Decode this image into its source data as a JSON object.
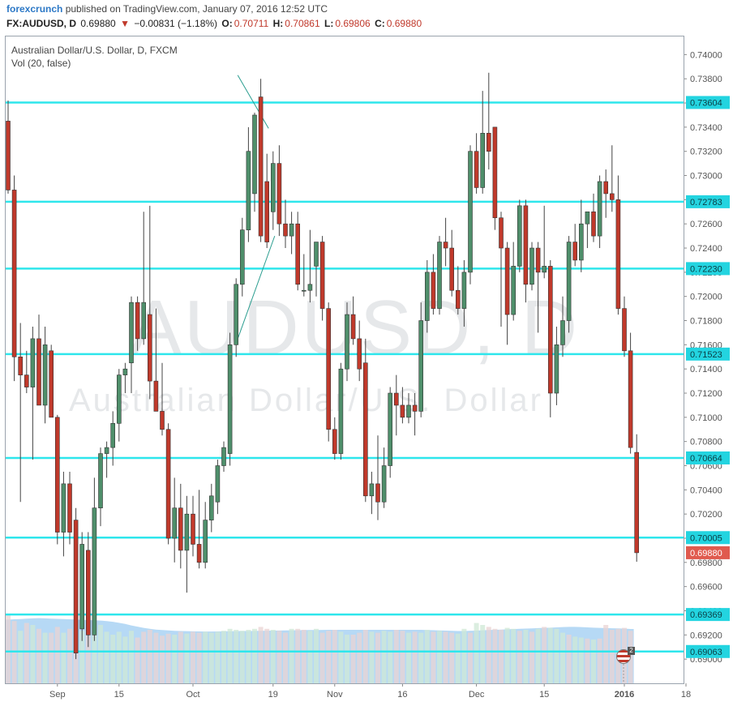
{
  "header": {
    "brand": "forexcrunch",
    "published_text": "published on TradingView.com, January 07, 2016 12:52 UTC",
    "symbol": "FX:AUDUSD, D",
    "last_price": "0.69880",
    "change_arrow": "▼",
    "change": "−0.00831 (−1.18%)",
    "open_label": "O:",
    "open": "0.70711",
    "high_label": "H:",
    "high": "0.70861",
    "low_label": "L:",
    "low": "0.69806",
    "close_label": "C:",
    "close": "0.69880"
  },
  "chart_data": {
    "type": "candlestick",
    "title": "Australian Dollar/U.S. Dollar, D, FXCM",
    "volume_label": "Vol (20, false)",
    "watermark_symbol": "AUDUSD, D",
    "watermark_name": "Australian Dollar/U.S. Dollar",
    "ylim": [
      0.688,
      0.7415
    ],
    "y_ticks": [
      "0.74000",
      "0.73800",
      "0.73600",
      "0.73400",
      "0.73200",
      "0.73000",
      "0.72800",
      "0.72600",
      "0.72400",
      "0.72200",
      "0.72000",
      "0.71800",
      "0.71600",
      "0.71400",
      "0.71200",
      "0.71000",
      "0.70800",
      "0.70600",
      "0.70400",
      "0.70200",
      "0.70000",
      "0.69800",
      "0.69600",
      "0.69400",
      "0.69200",
      "0.69000"
    ],
    "x_ticks": [
      {
        "label": "Sep",
        "index": 8
      },
      {
        "label": "15",
        "index": 18
      },
      {
        "label": "Oct",
        "index": 30
      },
      {
        "label": "19",
        "index": 43
      },
      {
        "label": "Nov",
        "index": 53
      },
      {
        "label": "16",
        "index": 64
      },
      {
        "label": "Dec",
        "index": 76
      },
      {
        "label": "15",
        "index": 87
      },
      {
        "label": "2016",
        "index": 100
      },
      {
        "label": "18",
        "index": 110
      }
    ],
    "support_resistance_levels": [
      "0.73604",
      "0.72783",
      "0.72230",
      "0.71523",
      "0.70664",
      "0.70005",
      "0.69369",
      "0.69063"
    ],
    "last_price_label": "0.69880",
    "last_price": 0.6988,
    "volume_ma": [
      0.655,
      0.658,
      0.66,
      0.665,
      0.668,
      0.67,
      0.668,
      0.665,
      0.662,
      0.66,
      0.658,
      0.655,
      0.652,
      0.65,
      0.648,
      0.645,
      0.64,
      0.632,
      0.622,
      0.61,
      0.595,
      0.582,
      0.57,
      0.56,
      0.552,
      0.548,
      0.544,
      0.54,
      0.538,
      0.536,
      0.534,
      0.533,
      0.532,
      0.532,
      0.533,
      0.534,
      0.535,
      0.536,
      0.537,
      0.538,
      0.539,
      0.54,
      0.541,
      0.542,
      0.543,
      0.544,
      0.545,
      0.546,
      0.547,
      0.548,
      0.548,
      0.549,
      0.55,
      0.55,
      0.55,
      0.55,
      0.55,
      0.55,
      0.55,
      0.55,
      0.55,
      0.55,
      0.55,
      0.55,
      0.55,
      0.55,
      0.55,
      0.55,
      0.548,
      0.546,
      0.544,
      0.542,
      0.54,
      0.538,
      0.538,
      0.54,
      0.542,
      0.545,
      0.548,
      0.55,
      0.552,
      0.555,
      0.558,
      0.56,
      0.562,
      0.565,
      0.568,
      0.57,
      0.572,
      0.575,
      0.578,
      0.58,
      0.58,
      0.578,
      0.575,
      0.572,
      0.57,
      0.568,
      0.566,
      0.565,
      0.562,
      0.558
    ],
    "candles": [
      {
        "o": 0.7345,
        "h": 0.7362,
        "l": 0.7285,
        "c": 0.7288
      },
      {
        "o": 0.7288,
        "h": 0.73,
        "l": 0.713,
        "c": 0.715
      },
      {
        "o": 0.715,
        "h": 0.7178,
        "l": 0.703,
        "c": 0.7135
      },
      {
        "o": 0.7135,
        "h": 0.7155,
        "l": 0.712,
        "c": 0.7125
      },
      {
        "o": 0.7125,
        "h": 0.7175,
        "l": 0.7065,
        "c": 0.7165
      },
      {
        "o": 0.7165,
        "h": 0.7185,
        "l": 0.711,
        "c": 0.711
      },
      {
        "o": 0.711,
        "h": 0.7175,
        "l": 0.7095,
        "c": 0.716
      },
      {
        "o": 0.7155,
        "h": 0.716,
        "l": 0.71,
        "c": 0.71
      },
      {
        "o": 0.71,
        "h": 0.7102,
        "l": 0.6995,
        "c": 0.7005
      },
      {
        "o": 0.7005,
        "h": 0.7055,
        "l": 0.6985,
        "c": 0.7045
      },
      {
        "o": 0.7045,
        "h": 0.7055,
        "l": 0.6995,
        "c": 0.7005
      },
      {
        "o": 0.7015,
        "h": 0.7025,
        "l": 0.69,
        "c": 0.6905
      },
      {
        "o": 0.6925,
        "h": 0.7005,
        "l": 0.6915,
        "c": 0.6995
      },
      {
        "o": 0.699,
        "h": 0.7005,
        "l": 0.691,
        "c": 0.692
      },
      {
        "o": 0.692,
        "h": 0.705,
        "l": 0.6915,
        "c": 0.7025
      },
      {
        "o": 0.7025,
        "h": 0.7075,
        "l": 0.701,
        "c": 0.707
      },
      {
        "o": 0.707,
        "h": 0.708,
        "l": 0.705,
        "c": 0.7075
      },
      {
        "o": 0.7075,
        "h": 0.7105,
        "l": 0.706,
        "c": 0.7095
      },
      {
        "o": 0.7095,
        "h": 0.714,
        "l": 0.708,
        "c": 0.7135
      },
      {
        "o": 0.7135,
        "h": 0.7145,
        "l": 0.712,
        "c": 0.714
      },
      {
        "o": 0.7145,
        "h": 0.72,
        "l": 0.712,
        "c": 0.7195
      },
      {
        "o": 0.7195,
        "h": 0.72,
        "l": 0.7155,
        "c": 0.7165
      },
      {
        "o": 0.7165,
        "h": 0.727,
        "l": 0.716,
        "c": 0.7195
      },
      {
        "o": 0.7185,
        "h": 0.7275,
        "l": 0.7115,
        "c": 0.713
      },
      {
        "o": 0.713,
        "h": 0.719,
        "l": 0.7105,
        "c": 0.7105
      },
      {
        "o": 0.7105,
        "h": 0.7145,
        "l": 0.7085,
        "c": 0.709
      },
      {
        "o": 0.709,
        "h": 0.7095,
        "l": 0.6995,
        "c": 0.7
      },
      {
        "o": 0.7,
        "h": 0.705,
        "l": 0.698,
        "c": 0.7025
      },
      {
        "o": 0.7025,
        "h": 0.7045,
        "l": 0.6975,
        "c": 0.699
      },
      {
        "o": 0.699,
        "h": 0.7035,
        "l": 0.6955,
        "c": 0.702
      },
      {
        "o": 0.702,
        "h": 0.7035,
        "l": 0.6985,
        "c": 0.6995
      },
      {
        "o": 0.6995,
        "h": 0.704,
        "l": 0.6975,
        "c": 0.698
      },
      {
        "o": 0.698,
        "h": 0.703,
        "l": 0.6975,
        "c": 0.7015
      },
      {
        "o": 0.7015,
        "h": 0.7045,
        "l": 0.7005,
        "c": 0.7035
      },
      {
        "o": 0.703,
        "h": 0.7065,
        "l": 0.702,
        "c": 0.706
      },
      {
        "o": 0.706,
        "h": 0.708,
        "l": 0.7055,
        "c": 0.7075
      },
      {
        "o": 0.707,
        "h": 0.717,
        "l": 0.706,
        "c": 0.716
      },
      {
        "o": 0.716,
        "h": 0.7215,
        "l": 0.715,
        "c": 0.721
      },
      {
        "o": 0.721,
        "h": 0.7265,
        "l": 0.72,
        "c": 0.7255
      },
      {
        "o": 0.7255,
        "h": 0.734,
        "l": 0.7245,
        "c": 0.732
      },
      {
        "o": 0.7285,
        "h": 0.7352,
        "l": 0.727,
        "c": 0.735
      },
      {
        "o": 0.7365,
        "h": 0.738,
        "l": 0.7245,
        "c": 0.725
      },
      {
        "o": 0.7295,
        "h": 0.7318,
        "l": 0.724,
        "c": 0.7245
      },
      {
        "o": 0.727,
        "h": 0.732,
        "l": 0.7255,
        "c": 0.731
      },
      {
        "o": 0.731,
        "h": 0.7325,
        "l": 0.725,
        "c": 0.726
      },
      {
        "o": 0.726,
        "h": 0.728,
        "l": 0.724,
        "c": 0.725
      },
      {
        "o": 0.725,
        "h": 0.727,
        "l": 0.7235,
        "c": 0.726
      },
      {
        "o": 0.726,
        "h": 0.727,
        "l": 0.7205,
        "c": 0.721
      },
      {
        "o": 0.7205,
        "h": 0.7235,
        "l": 0.72,
        "c": 0.7205
      },
      {
        "o": 0.7205,
        "h": 0.7255,
        "l": 0.7195,
        "c": 0.721
      },
      {
        "o": 0.7225,
        "h": 0.724,
        "l": 0.72,
        "c": 0.7245
      },
      {
        "o": 0.7245,
        "h": 0.725,
        "l": 0.718,
        "c": 0.719
      },
      {
        "o": 0.719,
        "h": 0.7195,
        "l": 0.708,
        "c": 0.709
      },
      {
        "o": 0.709,
        "h": 0.71,
        "l": 0.7065,
        "c": 0.707
      },
      {
        "o": 0.707,
        "h": 0.7145,
        "l": 0.7065,
        "c": 0.714
      },
      {
        "o": 0.714,
        "h": 0.7195,
        "l": 0.713,
        "c": 0.7185
      },
      {
        "o": 0.7185,
        "h": 0.72,
        "l": 0.716,
        "c": 0.7165
      },
      {
        "o": 0.7165,
        "h": 0.718,
        "l": 0.713,
        "c": 0.714
      },
      {
        "o": 0.7145,
        "h": 0.7165,
        "l": 0.703,
        "c": 0.7035
      },
      {
        "o": 0.7035,
        "h": 0.7055,
        "l": 0.702,
        "c": 0.7045
      },
      {
        "o": 0.7045,
        "h": 0.7085,
        "l": 0.7015,
        "c": 0.703
      },
      {
        "o": 0.703,
        "h": 0.7075,
        "l": 0.7025,
        "c": 0.706
      },
      {
        "o": 0.706,
        "h": 0.7125,
        "l": 0.705,
        "c": 0.712
      },
      {
        "o": 0.712,
        "h": 0.7135,
        "l": 0.7085,
        "c": 0.711
      },
      {
        "o": 0.711,
        "h": 0.7125,
        "l": 0.7095,
        "c": 0.71
      },
      {
        "o": 0.71,
        "h": 0.712,
        "l": 0.7095,
        "c": 0.711
      },
      {
        "o": 0.711,
        "h": 0.712,
        "l": 0.7085,
        "c": 0.7105
      },
      {
        "o": 0.7105,
        "h": 0.7195,
        "l": 0.71,
        "c": 0.718
      },
      {
        "o": 0.718,
        "h": 0.723,
        "l": 0.717,
        "c": 0.722
      },
      {
        "o": 0.722,
        "h": 0.7235,
        "l": 0.7185,
        "c": 0.719
      },
      {
        "o": 0.719,
        "h": 0.725,
        "l": 0.7185,
        "c": 0.7245
      },
      {
        "o": 0.7245,
        "h": 0.7265,
        "l": 0.7225,
        "c": 0.724
      },
      {
        "o": 0.724,
        "h": 0.7255,
        "l": 0.72,
        "c": 0.7205
      },
      {
        "o": 0.7205,
        "h": 0.7225,
        "l": 0.7185,
        "c": 0.719
      },
      {
        "o": 0.719,
        "h": 0.723,
        "l": 0.7175,
        "c": 0.722
      },
      {
        "o": 0.722,
        "h": 0.7325,
        "l": 0.721,
        "c": 0.732
      },
      {
        "o": 0.732,
        "h": 0.7335,
        "l": 0.7285,
        "c": 0.729
      },
      {
        "o": 0.729,
        "h": 0.737,
        "l": 0.7285,
        "c": 0.7335
      },
      {
        "o": 0.7335,
        "h": 0.7385,
        "l": 0.7305,
        "c": 0.732
      },
      {
        "o": 0.734,
        "h": 0.734,
        "l": 0.7255,
        "c": 0.7265
      },
      {
        "o": 0.7265,
        "h": 0.727,
        "l": 0.7175,
        "c": 0.724
      },
      {
        "o": 0.724,
        "h": 0.7245,
        "l": 0.716,
        "c": 0.7185
      },
      {
        "o": 0.7185,
        "h": 0.7245,
        "l": 0.718,
        "c": 0.7225
      },
      {
        "o": 0.7225,
        "h": 0.728,
        "l": 0.722,
        "c": 0.7275
      },
      {
        "o": 0.7275,
        "h": 0.728,
        "l": 0.7195,
        "c": 0.721
      },
      {
        "o": 0.721,
        "h": 0.7245,
        "l": 0.7205,
        "c": 0.724
      },
      {
        "o": 0.724,
        "h": 0.7245,
        "l": 0.717,
        "c": 0.722
      },
      {
        "o": 0.722,
        "h": 0.7275,
        "l": 0.7215,
        "c": 0.7225
      },
      {
        "o": 0.7225,
        "h": 0.723,
        "l": 0.71,
        "c": 0.712
      },
      {
        "o": 0.712,
        "h": 0.7175,
        "l": 0.711,
        "c": 0.716
      },
      {
        "o": 0.716,
        "h": 0.72,
        "l": 0.715,
        "c": 0.718
      },
      {
        "o": 0.718,
        "h": 0.725,
        "l": 0.717,
        "c": 0.7245
      },
      {
        "o": 0.7245,
        "h": 0.726,
        "l": 0.7225,
        "c": 0.723
      },
      {
        "o": 0.723,
        "h": 0.728,
        "l": 0.722,
        "c": 0.726
      },
      {
        "o": 0.726,
        "h": 0.727,
        "l": 0.724,
        "c": 0.727
      },
      {
        "o": 0.727,
        "h": 0.7285,
        "l": 0.7245,
        "c": 0.725
      },
      {
        "o": 0.725,
        "h": 0.73,
        "l": 0.724,
        "c": 0.7295
      },
      {
        "o": 0.7295,
        "h": 0.7305,
        "l": 0.7265,
        "c": 0.7285
      },
      {
        "o": 0.7285,
        "h": 0.7325,
        "l": 0.727,
        "c": 0.728
      },
      {
        "o": 0.728,
        "h": 0.73,
        "l": 0.7185,
        "c": 0.719
      },
      {
        "o": 0.719,
        "h": 0.72,
        "l": 0.715,
        "c": 0.7155
      },
      {
        "o": 0.7155,
        "h": 0.717,
        "l": 0.707,
        "c": 0.7075
      },
      {
        "o": 0.7071,
        "h": 0.7086,
        "l": 0.69806,
        "c": 0.6988
      }
    ],
    "volumes": [
      {
        "v": 0.7,
        "up": false
      },
      {
        "v": 0.64,
        "up": false
      },
      {
        "v": 0.54,
        "up": true
      },
      {
        "v": 0.62,
        "up": false
      },
      {
        "v": 0.6,
        "up": true
      },
      {
        "v": 0.56,
        "up": false
      },
      {
        "v": 0.52,
        "up": true
      },
      {
        "v": 0.52,
        "up": false
      },
      {
        "v": 0.58,
        "up": false
      },
      {
        "v": 0.52,
        "up": true
      },
      {
        "v": 0.56,
        "up": false
      },
      {
        "v": 0.5,
        "up": false
      },
      {
        "v": 0.54,
        "up": true
      },
      {
        "v": 0.56,
        "up": false
      },
      {
        "v": 0.58,
        "up": true
      },
      {
        "v": 0.6,
        "up": true
      },
      {
        "v": 0.53,
        "up": true
      },
      {
        "v": 0.5,
        "up": true
      },
      {
        "v": 0.53,
        "up": true
      },
      {
        "v": 0.48,
        "up": true
      },
      {
        "v": 0.54,
        "up": true
      },
      {
        "v": 0.47,
        "up": false
      },
      {
        "v": 0.53,
        "up": false
      },
      {
        "v": 0.55,
        "up": false
      },
      {
        "v": 0.52,
        "up": false
      },
      {
        "v": 0.49,
        "up": false
      },
      {
        "v": 0.51,
        "up": false
      },
      {
        "v": 0.5,
        "up": true
      },
      {
        "v": 0.53,
        "up": false
      },
      {
        "v": 0.51,
        "up": true
      },
      {
        "v": 0.53,
        "up": false
      },
      {
        "v": 0.52,
        "up": false
      },
      {
        "v": 0.53,
        "up": true
      },
      {
        "v": 0.52,
        "up": true
      },
      {
        "v": 0.53,
        "up": true
      },
      {
        "v": 0.54,
        "up": true
      },
      {
        "v": 0.56,
        "up": true
      },
      {
        "v": 0.55,
        "up": true
      },
      {
        "v": 0.54,
        "up": true
      },
      {
        "v": 0.55,
        "up": true
      },
      {
        "v": 0.56,
        "up": true
      },
      {
        "v": 0.58,
        "up": false
      },
      {
        "v": 0.56,
        "up": false
      },
      {
        "v": 0.55,
        "up": true
      },
      {
        "v": 0.54,
        "up": false
      },
      {
        "v": 0.52,
        "up": false
      },
      {
        "v": 0.56,
        "up": true
      },
      {
        "v": 0.56,
        "up": false
      },
      {
        "v": 0.55,
        "up": false
      },
      {
        "v": 0.54,
        "up": true
      },
      {
        "v": 0.56,
        "up": true
      },
      {
        "v": 0.52,
        "up": false
      },
      {
        "v": 0.54,
        "up": false
      },
      {
        "v": 0.55,
        "up": false
      },
      {
        "v": 0.53,
        "up": true
      },
      {
        "v": 0.5,
        "up": true
      },
      {
        "v": 0.5,
        "up": false
      },
      {
        "v": 0.52,
        "up": false
      },
      {
        "v": 0.55,
        "up": false
      },
      {
        "v": 0.53,
        "up": true
      },
      {
        "v": 0.52,
        "up": false
      },
      {
        "v": 0.54,
        "up": true
      },
      {
        "v": 0.53,
        "up": true
      },
      {
        "v": 0.55,
        "up": false
      },
      {
        "v": 0.54,
        "up": false
      },
      {
        "v": 0.52,
        "up": true
      },
      {
        "v": 0.53,
        "up": false
      },
      {
        "v": 0.52,
        "up": true
      },
      {
        "v": 0.55,
        "up": true
      },
      {
        "v": 0.53,
        "up": false
      },
      {
        "v": 0.54,
        "up": true
      },
      {
        "v": 0.53,
        "up": false
      },
      {
        "v": 0.52,
        "up": false
      },
      {
        "v": 0.51,
        "up": true
      },
      {
        "v": 0.56,
        "up": true
      },
      {
        "v": 0.52,
        "up": false
      },
      {
        "v": 0.62,
        "up": true
      },
      {
        "v": 0.6,
        "up": true
      },
      {
        "v": 0.58,
        "up": false
      },
      {
        "v": 0.56,
        "up": false
      },
      {
        "v": 0.55,
        "up": false
      },
      {
        "v": 0.57,
        "up": true
      },
      {
        "v": 0.56,
        "up": true
      },
      {
        "v": 0.54,
        "up": false
      },
      {
        "v": 0.55,
        "up": true
      },
      {
        "v": 0.53,
        "up": false
      },
      {
        "v": 0.56,
        "up": true
      },
      {
        "v": 0.58,
        "up": false
      },
      {
        "v": 0.57,
        "up": true
      },
      {
        "v": 0.56,
        "up": true
      },
      {
        "v": 0.52,
        "up": true
      },
      {
        "v": 0.5,
        "up": false
      },
      {
        "v": 0.48,
        "up": true
      },
      {
        "v": 0.47,
        "up": true
      },
      {
        "v": 0.46,
        "up": false
      },
      {
        "v": 0.45,
        "up": true
      },
      {
        "v": 0.46,
        "up": false
      },
      {
        "v": 0.6,
        "up": false
      },
      {
        "v": 0.55,
        "up": false
      },
      {
        "v": 0.56,
        "up": false
      },
      {
        "v": 0.57,
        "up": false
      },
      {
        "v": 0.54,
        "up": false
      }
    ],
    "colors": {
      "up_candle": "#4f8f6b",
      "down_candle": "#c0392b",
      "level_line": "#2ee6ec",
      "volume_ma_fill": "#a9d2f3",
      "volume_up": "#cfe8d6",
      "volume_down": "#ead3d3",
      "trendline": "#2a9d8f",
      "last_price_tag": "#e05a4e",
      "level_tag": "#23d4e0"
    }
  }
}
